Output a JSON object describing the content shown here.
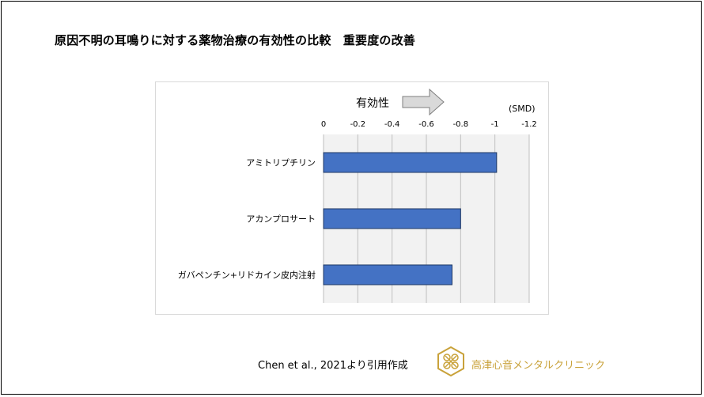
{
  "slide": {
    "title": "原因不明の耳鳴りに対する薬物治療の有効性の比較　重要度の改善",
    "source": "Chen et al., 2021より引用作成",
    "clinic_name": "高津心音メンタルクリニック"
  },
  "colors": {
    "bar": "#4472c4",
    "bar_border": "#1f3864",
    "plot_bg": "#f2f2f2",
    "grid": "#bfbfbf",
    "arrow_fill": "#d9d9d9",
    "arrow_stroke": "#7f7f7f",
    "logo": "#c9a23a"
  },
  "chart_data": {
    "type": "bar",
    "orientation": "horizontal",
    "categories": [
      "アミトリプチリン",
      "アカンプロサート",
      "ガバペンチン+リドカイン皮内注射"
    ],
    "values": [
      -1.01,
      -0.8,
      -0.75
    ],
    "unit_label": "(SMD)",
    "annotation": "有効性",
    "xlim": [
      0,
      -1.2
    ],
    "x_axis_position": "top",
    "x_ticks": [
      0,
      -0.2,
      -0.4,
      -0.6,
      -0.8,
      -1,
      -1.2
    ],
    "x_tick_labels": [
      "0",
      "-0.2",
      "-0.4",
      "-0.6",
      "-0.8",
      "-1",
      "-1.2"
    ],
    "grid": true,
    "legend": "none"
  }
}
